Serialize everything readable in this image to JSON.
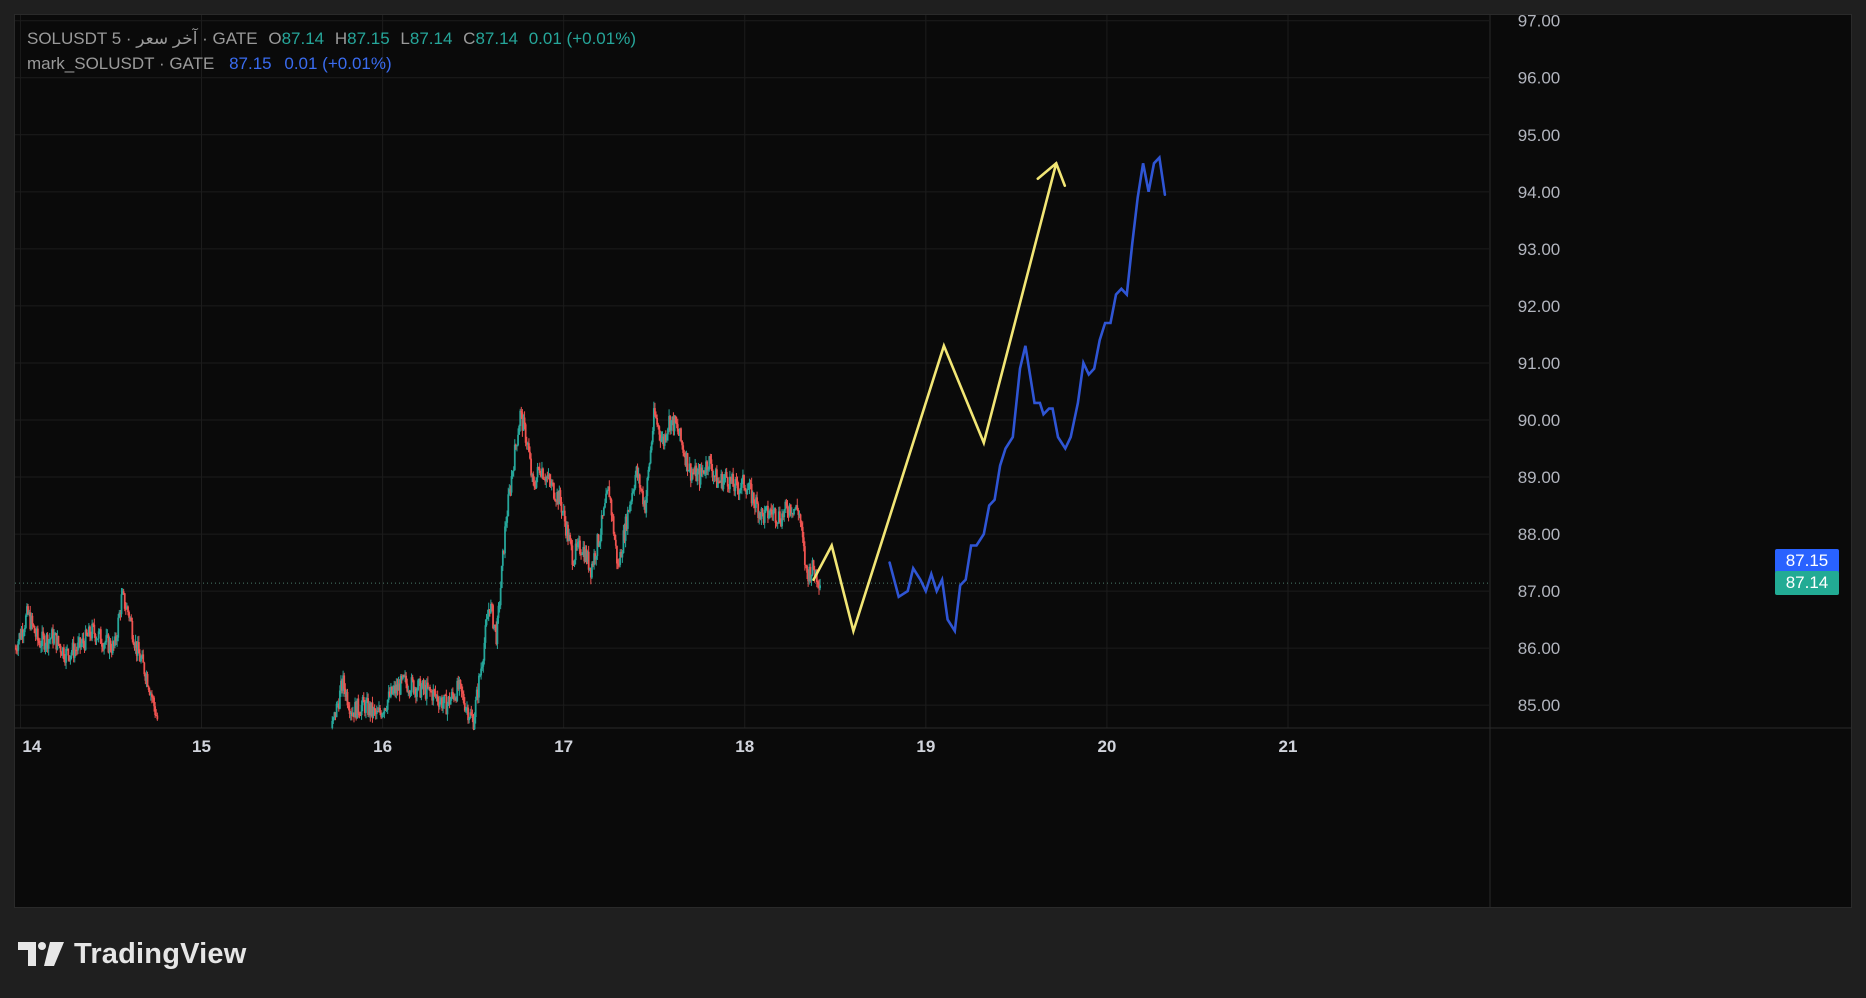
{
  "legend": {
    "main": {
      "symbol_text": "SOLUSDT 5 · آخر سعر · GATE",
      "open_label": "O",
      "open": "87.14",
      "high_label": "H",
      "high": "87.15",
      "low_label": "L",
      "low": "87.14",
      "close_label": "C",
      "close": "87.14",
      "change": "0.01 (+0.01%)"
    },
    "mark": {
      "symbol_text": "mark_SOLUSDT · GATE",
      "value": "87.15",
      "change": "0.01 (+0.01%)"
    }
  },
  "price_tags": {
    "mark": "87.15",
    "last": "87.14"
  },
  "brand": {
    "name": "TradingView"
  },
  "colors": {
    "background": "#0a0a0a",
    "page": "#1f1f1f",
    "up": "#26a69a",
    "down": "#ef5350",
    "projection_yellow": "#f2e675",
    "projection_blue": "#2f55d4",
    "mark_tag": "#2962ff",
    "last_tag": "#22ab94"
  },
  "chart_data": {
    "type": "line",
    "title": "SOLUSDT 5 · آخر سعر · GATE",
    "price_type": "candlestick",
    "x_ticks": [
      "14",
      "15",
      "16",
      "17",
      "18",
      "19",
      "20",
      "21"
    ],
    "y_ticks": [
      "85.00",
      "86.00",
      "87.00",
      "88.00",
      "89.00",
      "90.00",
      "91.00",
      "92.00",
      "93.00",
      "94.00",
      "95.00",
      "96.00",
      "97.00"
    ],
    "ylim": [
      84.6,
      97.1
    ],
    "xlim": [
      13.97,
      22.11
    ],
    "grid": true,
    "last_price": 87.14,
    "mark_price": 87.15,
    "price_path": {
      "name": "SOLUSDT",
      "x": [
        13.97,
        14.04,
        14.1,
        14.18,
        14.25,
        14.32,
        14.4,
        14.47,
        14.52,
        14.56,
        14.6,
        14.64,
        14.7,
        14.76,
        15.72,
        15.78,
        15.83,
        15.9,
        15.97,
        16.05,
        16.12,
        16.2,
        16.28,
        16.35,
        16.42,
        16.5,
        16.55,
        16.59,
        16.63,
        16.68,
        16.72,
        16.76,
        16.8,
        16.83,
        16.87,
        16.92,
        16.98,
        17.05,
        17.1,
        17.15,
        17.2,
        17.25,
        17.3,
        17.35,
        17.4,
        17.45,
        17.5,
        17.55,
        17.58,
        17.62,
        17.66,
        17.7,
        17.75,
        17.8,
        17.85,
        17.9,
        17.95,
        18.0,
        18.05,
        18.1,
        18.15,
        18.2,
        18.25,
        18.3,
        18.34,
        18.38,
        18.42
      ],
      "y": [
        86.0,
        86.6,
        86.1,
        86.2,
        85.9,
        86.0,
        86.3,
        86.1,
        86.0,
        86.9,
        86.6,
        86.0,
        85.5,
        84.7,
        84.6,
        85.4,
        84.9,
        85.0,
        84.8,
        85.2,
        85.4,
        85.3,
        85.2,
        85.0,
        85.3,
        84.7,
        85.8,
        86.8,
        86.2,
        88.2,
        89.2,
        90.1,
        89.6,
        88.8,
        89.2,
        88.9,
        88.6,
        87.6,
        87.8,
        87.4,
        88.0,
        88.8,
        87.4,
        88.3,
        89.1,
        88.5,
        90.1,
        89.6,
        90.0,
        89.9,
        89.5,
        89.1,
        89.0,
        89.3,
        88.9,
        89.0,
        88.8,
        88.9,
        88.6,
        88.3,
        88.4,
        88.3,
        88.5,
        88.4,
        87.3,
        87.4,
        87.15
      ]
    },
    "series": [
      {
        "x": [
          18.38,
          18.48,
          18.6,
          19.1,
          19.32,
          19.72
        ],
        "y": [
          87.2,
          87.8,
          86.3,
          91.3,
          89.6,
          94.5
        ]
      },
      {
        "x": [
          18.8,
          18.85,
          18.9,
          18.93,
          18.97,
          19.0,
          19.03,
          19.06,
          19.09,
          19.12,
          19.16,
          19.19,
          19.22,
          19.25,
          19.28,
          19.32,
          19.35,
          19.38,
          19.41,
          19.44,
          19.48,
          19.52,
          19.55,
          19.6,
          19.63,
          19.65,
          19.68,
          19.7,
          19.73,
          19.77,
          19.8,
          19.84,
          19.87,
          19.9,
          19.93,
          19.96,
          19.99,
          20.02,
          20.05,
          20.08,
          20.11,
          20.14,
          20.17,
          20.2,
          20.23,
          20.26,
          20.29,
          20.32
        ],
        "y": [
          87.5,
          86.9,
          87.0,
          87.4,
          87.2,
          87.0,
          87.3,
          87.0,
          87.2,
          86.5,
          86.3,
          87.1,
          87.2,
          87.8,
          87.8,
          88.0,
          88.5,
          88.6,
          89.2,
          89.5,
          89.7,
          90.9,
          91.3,
          90.3,
          90.3,
          90.1,
          90.2,
          90.2,
          89.7,
          89.5,
          89.7,
          90.3,
          91.0,
          90.8,
          90.9,
          91.4,
          91.7,
          91.7,
          92.2,
          92.3,
          92.2,
          93.1,
          93.9,
          94.5,
          94.0,
          94.5,
          94.6,
          93.95
        ]
      }
    ]
  }
}
